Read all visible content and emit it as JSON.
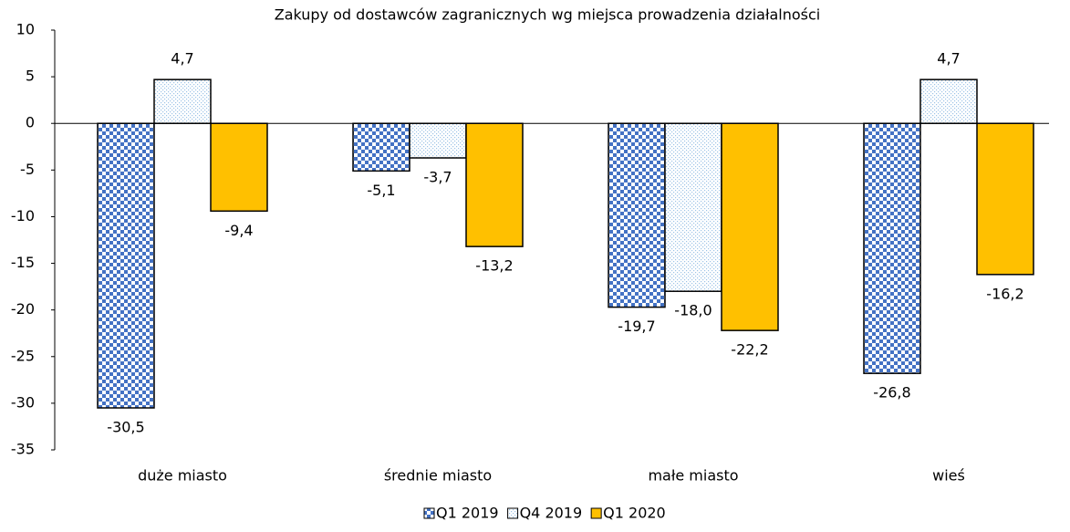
{
  "chart_data": {
    "type": "bar",
    "title": "Zakupy od dostawców zagranicznych wg miejsca prowadzenia działalności",
    "categories": [
      "duże miasto",
      "średnie miasto",
      "małe miasto",
      "wieś"
    ],
    "series": [
      {
        "name": "Q1 2019",
        "color": "#4472c4",
        "values": [
          -30.5,
          -5.1,
          -19.7,
          -26.8
        ],
        "value_labels": [
          "-30,5",
          "-5,1",
          "-19,7",
          "-26,8"
        ]
      },
      {
        "name": "Q4 2019",
        "color": "#9dc3e6",
        "values": [
          4.7,
          -3.7,
          -18.0,
          4.7
        ],
        "value_labels": [
          "4,7",
          "-3,7",
          "-18,0",
          "4,7"
        ]
      },
      {
        "name": "Q1 2020",
        "color": "#ffc000",
        "values": [
          -9.4,
          -13.2,
          -22.2,
          -16.2
        ],
        "value_labels": [
          "-9,4",
          "-13,2",
          "-22,2",
          "-16,2"
        ]
      }
    ],
    "ylim": [
      -35,
      10
    ],
    "yticks": [
      10,
      5,
      0,
      -5,
      -10,
      -15,
      -20,
      -25,
      -30,
      -35
    ],
    "grid": false
  }
}
